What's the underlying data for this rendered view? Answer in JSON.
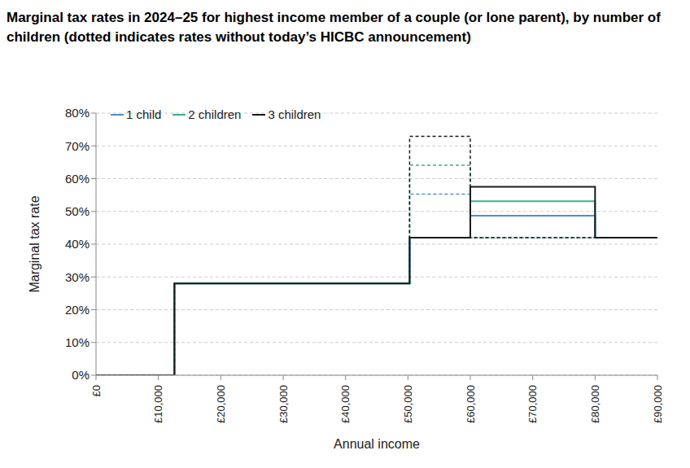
{
  "chart_data": {
    "type": "line",
    "title": "Marginal tax rates in 2024–25 for highest income member of a couple (or lone parent), by number of children (dotted indicates rates without today’s HICBC announcement)",
    "x_label": "Annual income",
    "y_label": "Marginal tax rate",
    "x": [
      0,
      12570,
      50270,
      60000,
      80000,
      90000
    ],
    "xlim": [
      0,
      90000
    ],
    "xticks": [
      {
        "value": 0,
        "label": "£0"
      },
      {
        "value": 10000,
        "label": "£10,000"
      },
      {
        "value": 20000,
        "label": "£20,000"
      },
      {
        "value": 30000,
        "label": "£30,000"
      },
      {
        "value": 40000,
        "label": "£40,000"
      },
      {
        "value": 50000,
        "label": "£50,000"
      },
      {
        "value": 60000,
        "label": "£60,000"
      },
      {
        "value": 70000,
        "label": "£70,000"
      },
      {
        "value": 80000,
        "label": "£80,000"
      },
      {
        "value": 90000,
        "label": "£90,000"
      }
    ],
    "ylim": [
      0,
      80
    ],
    "yticks": [
      {
        "value": 0,
        "label": "0%"
      },
      {
        "value": 10,
        "label": "10%"
      },
      {
        "value": 20,
        "label": "20%"
      },
      {
        "value": 30,
        "label": "30%"
      },
      {
        "value": 40,
        "label": "40%"
      },
      {
        "value": 50,
        "label": "50%"
      },
      {
        "value": 60,
        "label": "60%"
      },
      {
        "value": 70,
        "label": "70%"
      },
      {
        "value": 80,
        "label": "80%"
      }
    ],
    "grid": true,
    "legend": "top-left",
    "series": [
      {
        "name": "1 child",
        "color": "#4f90d0",
        "line_style": "solid",
        "values": [
          0,
          28,
          42,
          48.7,
          42,
          42
        ],
        "values_without_announcement": [
          0,
          28,
          55.3,
          42,
          42,
          42
        ]
      },
      {
        "name": "2 children",
        "color": "#3fae8a",
        "line_style": "solid",
        "values": [
          0,
          28,
          42,
          53.1,
          42,
          42
        ],
        "values_without_announcement": [
          0,
          28,
          64.1,
          42,
          42,
          42
        ]
      },
      {
        "name": "3 children",
        "color": "#1a1a1a",
        "line_style": "solid",
        "values": [
          0,
          28,
          42,
          57.5,
          42,
          42
        ],
        "values_without_announcement": [
          0,
          28,
          72.9,
          42,
          42,
          42
        ]
      }
    ]
  }
}
